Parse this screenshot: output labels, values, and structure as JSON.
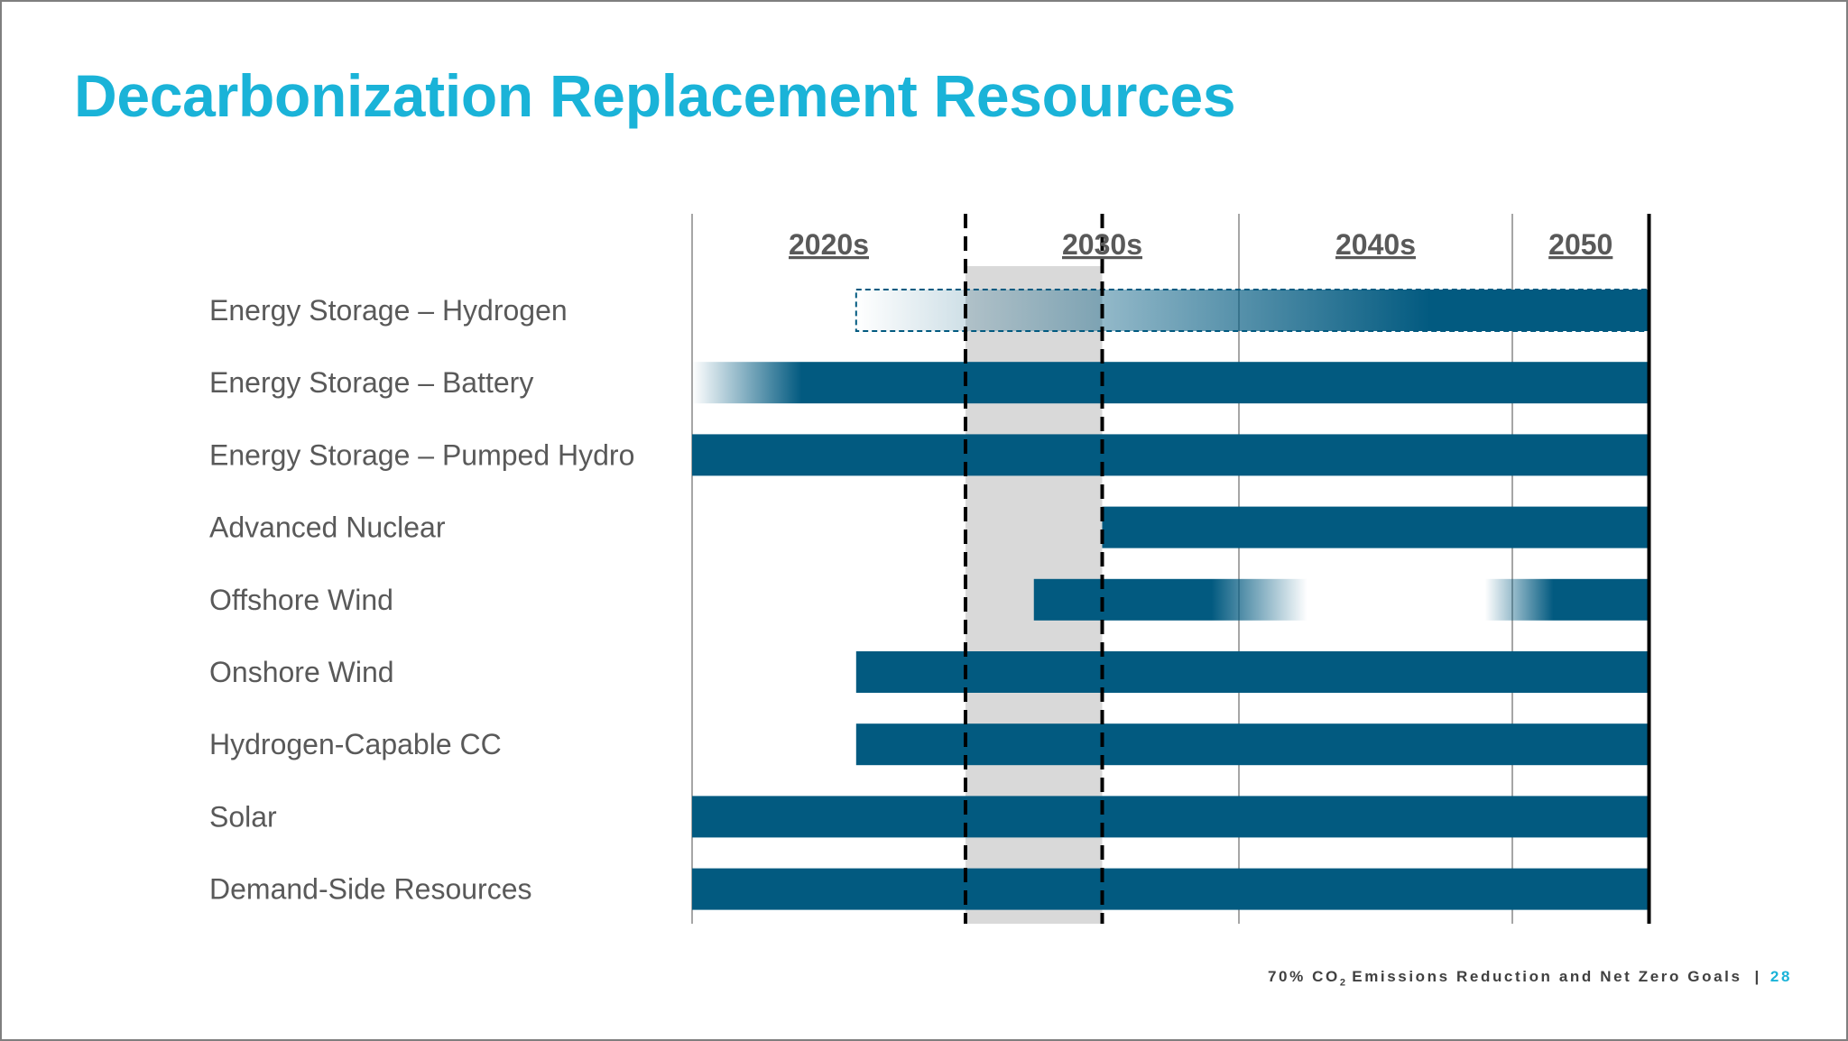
{
  "title": "Decarbonization Replacement Resources",
  "footer": {
    "text_before_sub": "70% CO",
    "subscript": "2",
    "text_after_sub": " Emissions Reduction and Net Zero Goals",
    "separator": "|",
    "page_number": "28"
  },
  "colors": {
    "title": "#1ab3d8",
    "bar": "#025a80",
    "highlight_band": "#d9d9d9",
    "label_text": "#595959"
  },
  "chart_data": {
    "type": "gantt",
    "title": "Decarbonization Replacement Resources",
    "x_axis": {
      "unit": "year",
      "range": [
        2020,
        2055
      ]
    },
    "periods": [
      {
        "label": "2020s",
        "start": 2020,
        "end": 2030
      },
      {
        "label": "2030s",
        "start": 2030,
        "end": 2040
      },
      {
        "label": "2040s",
        "start": 2040,
        "end": 2050
      },
      {
        "label": "2050",
        "start": 2050,
        "end": 2055
      }
    ],
    "highlight_band": {
      "start": 2030,
      "end": 2035
    },
    "dashed_lines": [
      2030,
      2035
    ],
    "end_line": 2055,
    "rows": [
      {
        "name": "Energy Storage – Hydrogen",
        "segments": [
          {
            "start": 2026,
            "end": 2055,
            "style": "fade-in",
            "fade_to": 2047,
            "outlined": true
          }
        ]
      },
      {
        "name": "Energy Storage – Battery",
        "segments": [
          {
            "start": 2020,
            "end": 2055,
            "style": "fade-in",
            "fade_to": 2024
          }
        ]
      },
      {
        "name": "Energy Storage – Pumped Hydro",
        "segments": [
          {
            "start": 2020,
            "end": 2055,
            "style": "solid"
          }
        ]
      },
      {
        "name": "Advanced Nuclear",
        "segments": [
          {
            "start": 2035,
            "end": 2055,
            "style": "solid"
          }
        ]
      },
      {
        "name": "Offshore Wind",
        "segments": [
          {
            "start": 2032.5,
            "end": 2042.5,
            "style": "fade-out",
            "fade_from": 2039
          },
          {
            "start": 2049,
            "end": 2055,
            "style": "fade-in",
            "fade_to": 2051.5
          }
        ]
      },
      {
        "name": "Onshore Wind",
        "segments": [
          {
            "start": 2026,
            "end": 2055,
            "style": "solid"
          }
        ]
      },
      {
        "name": "Hydrogen-Capable CC",
        "segments": [
          {
            "start": 2026,
            "end": 2055,
            "style": "solid"
          }
        ]
      },
      {
        "name": "Solar",
        "segments": [
          {
            "start": 2020,
            "end": 2055,
            "style": "solid"
          }
        ]
      },
      {
        "name": "Demand-Side Resources",
        "segments": [
          {
            "start": 2020,
            "end": 2055,
            "style": "solid"
          }
        ]
      }
    ]
  }
}
